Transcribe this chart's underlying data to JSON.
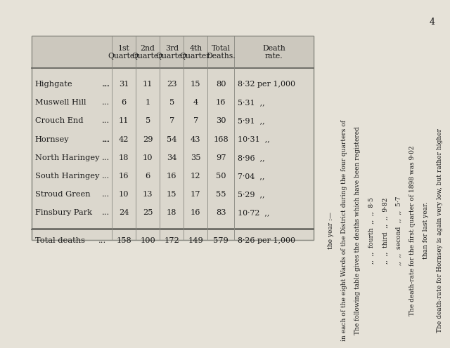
{
  "page_number": "4",
  "bg_color": "#e6e2d8",
  "table_bg": "#dbd7cd",
  "header_bg": "#ccc8be",
  "text_color": "#1a1a1a",
  "border_color": "#888880",
  "col_headers": [
    "1st\nQuarter.",
    "2nd\nQuarter.",
    "3rd\nQuarter.",
    "4th\nQuarter.",
    "Total\nDeaths.",
    "Death\nrate."
  ],
  "rows": [
    [
      "Highgate",
      "...",
      "...",
      "31",
      "11",
      "23",
      "15",
      "80",
      "8·32 per 1,000"
    ],
    [
      "Muswell Hill",
      "...",
      "",
      "6",
      "1",
      "5",
      "4",
      "16",
      "5·31   ,,"
    ],
    [
      "Crouch End",
      "...",
      "",
      "11",
      "5",
      "7",
      "7",
      "30",
      "5·91   ,,"
    ],
    [
      "Hornsey",
      "...",
      "...",
      "42",
      "29",
      "54",
      "43",
      "168",
      "10·31   ,,"
    ],
    [
      "North Haringey",
      "...",
      "",
      "18",
      "10",
      "34",
      "35",
      "97",
      "8·96   ,,"
    ],
    [
      "South Haringey",
      "...",
      "",
      "16",
      "6",
      "16",
      "12",
      "50",
      "7·04   ,,"
    ],
    [
      "Stroud Green",
      "...",
      "",
      "10",
      "13",
      "15",
      "17",
      "55",
      "5·29   ,,"
    ],
    [
      "Finsbury Park",
      "...",
      "",
      "24",
      "25",
      "18",
      "16",
      "83",
      "10·72   ,,"
    ]
  ],
  "total_row": [
    "Total deaths",
    "...",
    "158",
    "100",
    "172",
    "149",
    "579",
    "8·26 per 1,000"
  ],
  "sidebar_lines": [
    "The death-rate for Hornsey is again very low, but rather higher",
    "than for last year.",
    "The death-rate for the first quarter of 1898 was 9·02",
    ",,  ,,  second  ,,  ,,  5·7",
    ",,  ,,  third  ,,  ,,  9·82",
    ",,  ,,  fourth  ,,  ,,  8·5",
    "The following table gives the deaths which have been registered",
    "in each of the eight Wards of the District during the four quarters of",
    "the year :—"
  ],
  "font_size_body": 8.2,
  "font_size_header": 7.8,
  "font_size_sidebar": 6.5
}
